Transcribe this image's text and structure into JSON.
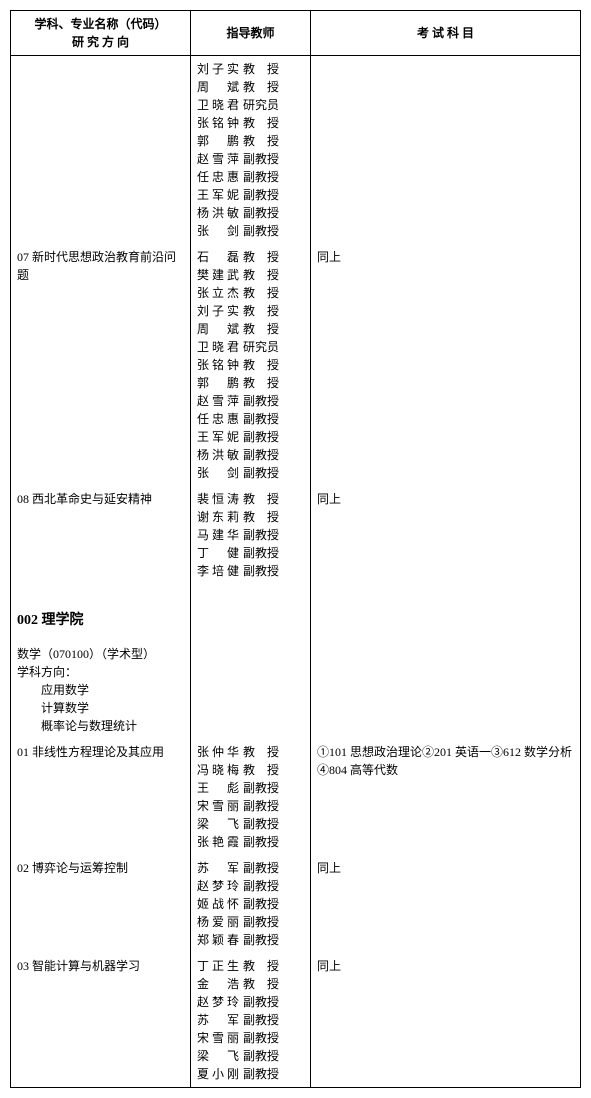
{
  "headers": {
    "subject": "学科、专业名称（代码）\n研 究 方 向",
    "advisor": "指导教师",
    "exam": "考 试 科 目"
  },
  "rows": [
    {
      "subject_lines": [
        ""
      ],
      "advisors": [
        {
          "name": "刘子实",
          "title": "教　授"
        },
        {
          "name": "周　斌",
          "title": "教　授"
        },
        {
          "name": "卫晓君",
          "title": "研究员"
        },
        {
          "name": "张铭钟",
          "title": "教　授"
        },
        {
          "name": "郭　鹏",
          "title": "教　授"
        },
        {
          "name": "赵雪萍",
          "title": "副教授"
        },
        {
          "name": "任忠惠",
          "title": "副教授"
        },
        {
          "name": "王军妮",
          "title": "副教授"
        },
        {
          "name": "杨洪敏",
          "title": "副教授"
        },
        {
          "name": "张　剑",
          "title": "副教授"
        }
      ],
      "exam": ""
    },
    {
      "subject_lines": [
        "07 新时代思想政治教育前沿问题"
      ],
      "advisors": [
        {
          "name": "石　磊",
          "title": "教　授"
        },
        {
          "name": "樊建武",
          "title": "教　授"
        },
        {
          "name": "张立杰",
          "title": "教　授"
        },
        {
          "name": "刘子实",
          "title": "教　授"
        },
        {
          "name": "周　斌",
          "title": "教　授"
        },
        {
          "name": "卫晓君",
          "title": "研究员"
        },
        {
          "name": "张铭钟",
          "title": "教　授"
        },
        {
          "name": "郭　鹏",
          "title": "教　授"
        },
        {
          "name": "赵雪萍",
          "title": "副教授"
        },
        {
          "name": "任忠惠",
          "title": "副教授"
        },
        {
          "name": "王军妮",
          "title": "副教授"
        },
        {
          "name": "杨洪敏",
          "title": "副教授"
        },
        {
          "name": "张　剑",
          "title": "副教授"
        }
      ],
      "exam": "同上"
    },
    {
      "subject_lines": [
        "08 西北革命史与延安精神"
      ],
      "advisors": [
        {
          "name": "裴恒涛",
          "title": "教　授"
        },
        {
          "name": "谢东莉",
          "title": "教　授"
        },
        {
          "name": "马建华",
          "title": "副教授"
        },
        {
          "name": "丁　健",
          "title": "副教授"
        },
        {
          "name": "李培健",
          "title": "副教授"
        }
      ],
      "exam": "同上"
    },
    {
      "department": "002 理学院",
      "subject_lines": [],
      "advisors": [],
      "exam": ""
    },
    {
      "subject_lines": [
        "数学（070100）（学术型）",
        "学科方向：",
        "　　应用数学",
        "　　计算数学",
        "　　概率论与数理统计"
      ],
      "advisors": [],
      "exam": ""
    },
    {
      "subject_lines": [
        "01 非线性方程理论及其应用"
      ],
      "advisors": [
        {
          "name": "张仲华",
          "title": "教　授"
        },
        {
          "name": "冯晓梅",
          "title": "教　授"
        },
        {
          "name": "王　彪",
          "title": "副教授"
        },
        {
          "name": "宋雪丽",
          "title": "副教授"
        },
        {
          "name": "梁　飞",
          "title": "副教授"
        },
        {
          "name": "张艳霞",
          "title": "副教授"
        }
      ],
      "exam": "①101 思想政治理论②201 英语一③612 数学分析④804 高等代数"
    },
    {
      "subject_lines": [
        "02 博弈论与运筹控制"
      ],
      "advisors": [
        {
          "name": "苏　军",
          "title": "副教授"
        },
        {
          "name": "赵梦玲",
          "title": "副教授"
        },
        {
          "name": "姬战怀",
          "title": "副教授"
        },
        {
          "name": "杨爱丽",
          "title": "副教授"
        },
        {
          "name": "郑颖春",
          "title": "副教授"
        }
      ],
      "exam": "同上"
    },
    {
      "subject_lines": [
        "03 智能计算与机器学习"
      ],
      "advisors": [
        {
          "name": "丁正生",
          "title": "教　授"
        },
        {
          "name": "金　浩",
          "title": "教　授"
        },
        {
          "name": "赵梦玲",
          "title": "副教授"
        },
        {
          "name": "苏　军",
          "title": "副教授"
        },
        {
          "name": "宋雪丽",
          "title": "副教授"
        },
        {
          "name": "梁　飞",
          "title": "副教授"
        },
        {
          "name": "夏小刚",
          "title": "副教授"
        }
      ],
      "exam": "同上"
    }
  ]
}
